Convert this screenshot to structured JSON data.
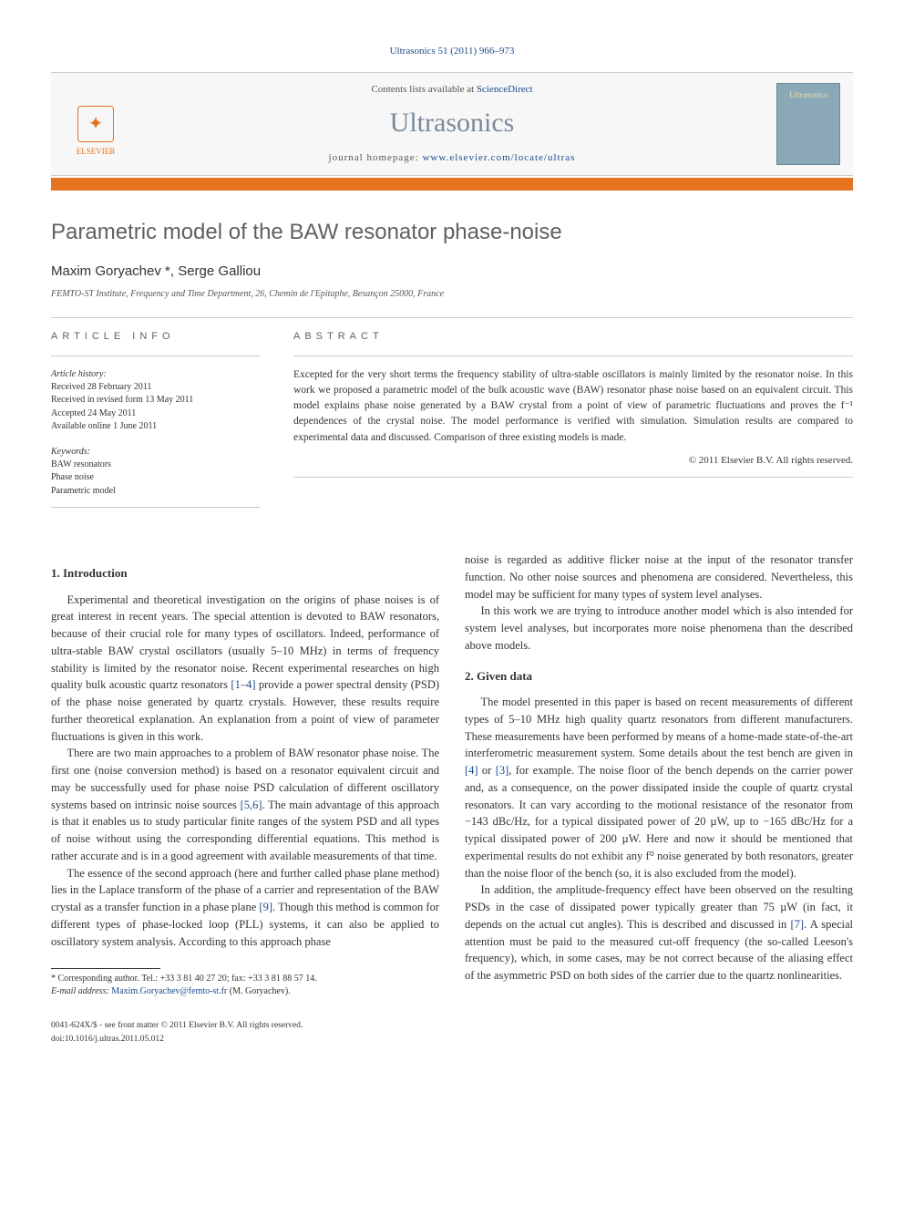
{
  "journal_ref": {
    "prefix": "Ultrasonics 51 (2011) 966–973"
  },
  "banner": {
    "contents_prefix": "Contents lists available at ",
    "contents_link": "ScienceDirect",
    "journal_name": "Ultrasonics",
    "homepage_prefix": "journal homepage: ",
    "homepage_url": "www.elsevier.com/locate/ultras",
    "publisher_label": "ELSEVIER",
    "cover_text": "Ultrasonics"
  },
  "article": {
    "title": "Parametric model of the BAW resonator phase-noise",
    "authors": "Maxim Goryachev *, Serge Galliou",
    "affiliation": "FEMTO-ST Institute, Frequency and Time Department, 26, Chemin de l'Epitaphe, Besançon 25000, France"
  },
  "info": {
    "label": "ARTICLE INFO",
    "history_label": "Article history:",
    "history": [
      "Received 28 February 2011",
      "Received in revised form 13 May 2011",
      "Accepted 24 May 2011",
      "Available online 1 June 2011"
    ],
    "keywords_label": "Keywords:",
    "keywords": [
      "BAW resonators",
      "Phase noise",
      "Parametric model"
    ]
  },
  "abstract": {
    "label": "ABSTRACT",
    "text": "Excepted for the very short terms the frequency stability of ultra-stable oscillators is mainly limited by the resonator noise. In this work we proposed a parametric model of the bulk acoustic wave (BAW) resonator phase noise based on an equivalent circuit. This model explains phase noise generated by a BAW crystal from a point of view of parametric fluctuations and proves the f⁻¹ dependences of the crystal noise. The model performance is verified with simulation. Simulation results are compared to experimental data and discussed. Comparison of three existing models is made.",
    "copyright": "© 2011 Elsevier B.V. All rights reserved."
  },
  "sections": {
    "s1_title": "1. Introduction",
    "s1_p1": "Experimental and theoretical investigation on the origins of phase noises is of great interest in recent years. The special attention is devoted to BAW resonators, because of their crucial role for many types of oscillators. Indeed, performance of ultra-stable BAW crystal oscillators (usually 5–10 MHz) in terms of frequency stability is limited by the resonator noise. Recent experimental researches on high quality bulk acoustic quartz resonators ",
    "s1_p1_ref1": "[1–4]",
    "s1_p1_cont": " provide a power spectral density (PSD) of the phase noise generated by quartz crystals. However, these results require further theoretical explanation. An explanation from a point of view of parameter fluctuations is given in this work.",
    "s1_p2": "There are two main approaches to a problem of BAW resonator phase noise. The first one (noise conversion method) is based on a resonator equivalent circuit and may be successfully used for phase noise PSD calculation of different oscillatory systems based on intrinsic noise sources ",
    "s1_p2_ref": "[5,6]",
    "s1_p2_cont": ". The main advantage of this approach is that it enables us to study particular finite ranges of the system PSD and all types of noise without using the corresponding differential equations. This method is rather accurate and is in a good agreement with available measurements of that time.",
    "s1_p3": "The essence of the second approach (here and further called phase plane method) lies in the Laplace transform of the phase of a carrier and representation of the BAW crystal as a transfer function in a phase plane ",
    "s1_p3_ref": "[9]",
    "s1_p3_cont": ". Though this method is common for different types of phase-locked loop (PLL) systems, it can also be applied to oscillatory system analysis. According to this approach phase ",
    "s1_p3_col2": "noise is regarded as additive flicker noise at the input of the resonator transfer function. No other noise sources and phenomena are considered. Nevertheless, this model may be sufficient for many types of system level analyses.",
    "s1_p4": "In this work we are trying to introduce another model which is also intended for system level analyses, but incorporates more noise phenomena than the described above models.",
    "s2_title": "2. Given data",
    "s2_p1a": "The model presented in this paper is based on recent measurements of different types of 5–10 MHz high quality quartz resonators from different manufacturers. These measurements have been performed by means of a home-made state-of-the-art interferometric measurement system. Some details about the test bench are given in ",
    "s2_p1_ref1": "[4]",
    "s2_p1b": " or ",
    "s2_p1_ref2": "[3]",
    "s2_p1c": ", for example. The noise floor of the bench depends on the carrier power and, as a consequence, on the power dissipated inside the couple of quartz crystal resonators. It can vary according to the motional resistance of the resonator from −143 dBc/Hz, for a typical dissipated power of 20 µW, up to −165 dBc/Hz for a typical dissipated power of 200 µW. Here and now it should be mentioned that experimental results do not exhibit any f⁰ noise generated by both resonators, greater than the noise floor of the bench (so, it is also excluded from the model).",
    "s2_p2a": "In addition, the amplitude-frequency effect have been observed on the resulting PSDs in the case of dissipated power typically greater than 75 µW (in fact, it depends on the actual cut angles). This is described and discussed in ",
    "s2_p2_ref": "[7]",
    "s2_p2b": ". A special attention must be paid to the measured cut-off frequency (the so-called Leeson's frequency), which, in some cases, may be not correct because of the aliasing effect of the asymmetric PSD on both sides of the carrier due to the quartz nonlinearities."
  },
  "footnote": {
    "corr_label": "* Corresponding author. Tel.: +33 3 81 40 27 20; fax: +33 3 81 88 57 14.",
    "email_label": "E-mail address: ",
    "email": "Maxim.Goryachev@femto-st.fr",
    "email_suffix": " (M. Goryachev)."
  },
  "footer": {
    "issn_line": "0041-624X/$ - see front matter © 2011 Elsevier B.V. All rights reserved.",
    "doi_line": "doi:10.1016/j.ultras.2011.05.012"
  },
  "colors": {
    "accent_orange": "#e6731f",
    "link_blue": "#1a4b8a",
    "title_gray": "#606060",
    "cover_bg": "#8aa8b8"
  }
}
